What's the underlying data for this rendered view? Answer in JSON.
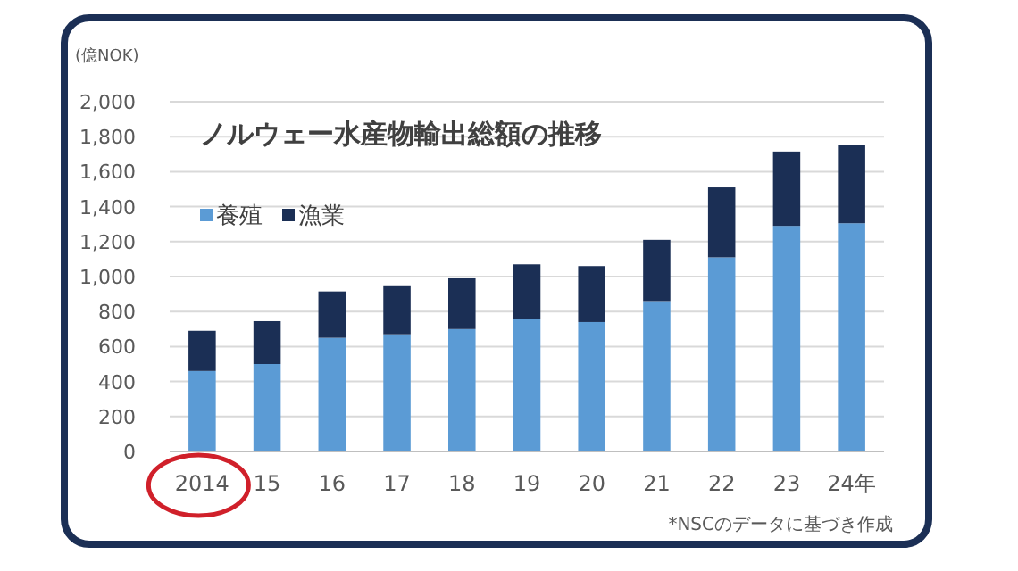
{
  "chart_data": {
    "type": "bar",
    "title": "ノルウェー水産物輸出総額の推移",
    "ylabel": "(億NOK)",
    "stacked": true,
    "grid": "y",
    "legend": "top left",
    "categories": [
      "2014",
      "15",
      "16",
      "17",
      "18",
      "19",
      "20",
      "21",
      "22",
      "23",
      "24年"
    ],
    "ylim": [
      0,
      2000
    ],
    "yticks": [
      {
        "value": 0,
        "label": "0"
      },
      {
        "value": 200,
        "label": "200"
      },
      {
        "value": 400,
        "label": "400"
      },
      {
        "value": 600,
        "label": "600"
      },
      {
        "value": 800,
        "label": "800"
      },
      {
        "value": 1000,
        "label": "1,000"
      },
      {
        "value": 1200,
        "label": "1,200"
      },
      {
        "value": 1400,
        "label": "1,400"
      },
      {
        "value": 1600,
        "label": "1,600"
      },
      {
        "value": 1800,
        "label": "1,800"
      },
      {
        "value": 2000,
        "label": "2,000"
      }
    ],
    "series": [
      {
        "name": "養殖",
        "color": "#5b9bd5",
        "values": [
          460,
          500,
          650,
          670,
          700,
          760,
          740,
          860,
          1110,
          1290,
          1305
        ]
      },
      {
        "name": "漁業",
        "color": "#1b2f55",
        "values": [
          230,
          245,
          265,
          275,
          290,
          310,
          320,
          350,
          400,
          425,
          450
        ]
      }
    ],
    "annotations": [
      "*NSCのデータに基づき作成"
    ]
  }
}
